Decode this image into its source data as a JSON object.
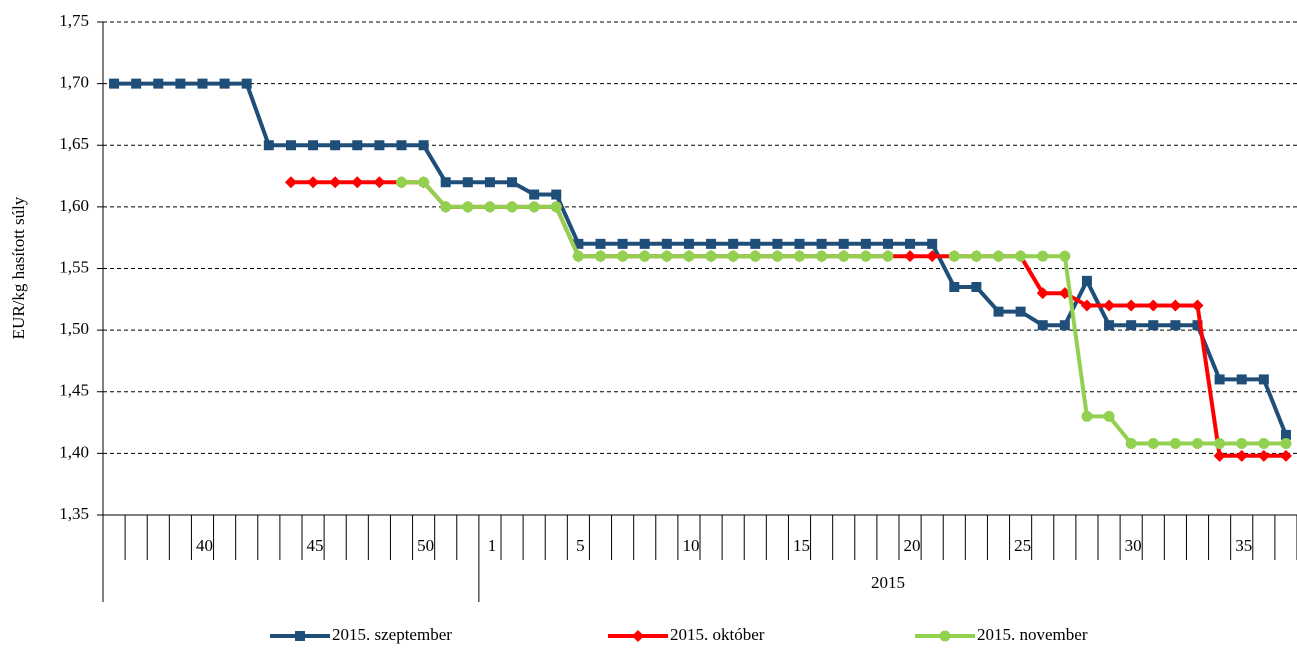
{
  "chart_data": {
    "type": "line",
    "y_label": "EUR/kg hasított súly",
    "x_group_label": "2015",
    "categories": [
      null,
      null,
      null,
      null,
      "40",
      null,
      null,
      null,
      null,
      "45",
      null,
      null,
      null,
      null,
      "50",
      null,
      null,
      "1",
      null,
      null,
      null,
      "5",
      null,
      null,
      null,
      null,
      "10",
      null,
      null,
      null,
      null,
      "15",
      null,
      null,
      null,
      null,
      "20",
      null,
      null,
      null,
      null,
      "25",
      null,
      null,
      null,
      null,
      "30",
      null,
      null,
      null,
      null,
      "35",
      null,
      null
    ],
    "ylim": [
      1.35,
      1.75
    ],
    "yticks": [
      {
        "value": 1.35,
        "label": "1,35"
      },
      {
        "value": 1.4,
        "label": "1,40"
      },
      {
        "value": 1.45,
        "label": "1,45"
      },
      {
        "value": 1.5,
        "label": "1,50"
      },
      {
        "value": 1.55,
        "label": "1,55"
      },
      {
        "value": 1.6,
        "label": "1,60"
      },
      {
        "value": 1.65,
        "label": "1,65"
      },
      {
        "value": 1.7,
        "label": "1,70"
      },
      {
        "value": 1.75,
        "label": "1,75"
      }
    ],
    "grid": true,
    "legend": "bottom",
    "series": [
      {
        "name": "2015. szeptember",
        "color": "#1F4E79",
        "marker": "square",
        "values": [
          1.7,
          1.7,
          1.7,
          1.7,
          1.7,
          1.7,
          1.7,
          1.65,
          1.65,
          1.65,
          1.65,
          1.65,
          1.65,
          1.65,
          1.65,
          1.62,
          1.62,
          1.62,
          1.62,
          1.61,
          1.61,
          1.57,
          1.57,
          1.57,
          1.57,
          1.57,
          1.57,
          1.57,
          1.57,
          1.57,
          1.57,
          1.57,
          1.57,
          1.57,
          1.57,
          1.57,
          1.57,
          1.57,
          1.535,
          1.535,
          1.515,
          1.515,
          1.504,
          1.504,
          1.54,
          1.504,
          1.504,
          1.504,
          1.504,
          1.504,
          1.46,
          1.46,
          1.46,
          1.415
        ]
      },
      {
        "name": "2015. október",
        "color": "#FF0000",
        "marker": "diamond",
        "values": [
          null,
          null,
          null,
          null,
          null,
          null,
          null,
          null,
          1.62,
          1.62,
          1.62,
          1.62,
          1.62,
          1.62,
          1.62,
          1.6,
          1.6,
          1.6,
          1.6,
          1.6,
          1.6,
          1.56,
          1.56,
          1.56,
          1.56,
          1.56,
          1.56,
          1.56,
          1.56,
          1.56,
          1.56,
          1.56,
          1.56,
          1.56,
          1.56,
          1.56,
          1.56,
          1.56,
          1.56,
          1.56,
          1.56,
          1.56,
          1.53,
          1.53,
          1.52,
          1.52,
          1.52,
          1.52,
          1.52,
          1.52,
          1.398,
          1.398,
          1.398,
          1.398
        ]
      },
      {
        "name": "2015. november",
        "color": "#92D050",
        "marker": "circle",
        "values": [
          null,
          null,
          null,
          null,
          null,
          null,
          null,
          null,
          null,
          null,
          null,
          null,
          null,
          1.62,
          1.62,
          1.6,
          1.6,
          1.6,
          1.6,
          1.6,
          1.6,
          1.56,
          1.56,
          1.56,
          1.56,
          1.56,
          1.56,
          1.56,
          1.56,
          1.56,
          1.56,
          1.56,
          1.56,
          1.56,
          1.56,
          1.56,
          null,
          null,
          1.56,
          1.56,
          1.56,
          1.56,
          1.56,
          1.56,
          1.43,
          1.43,
          1.408,
          1.408,
          1.408,
          1.408,
          1.408,
          1.408,
          1.408,
          1.408
        ]
      }
    ]
  }
}
